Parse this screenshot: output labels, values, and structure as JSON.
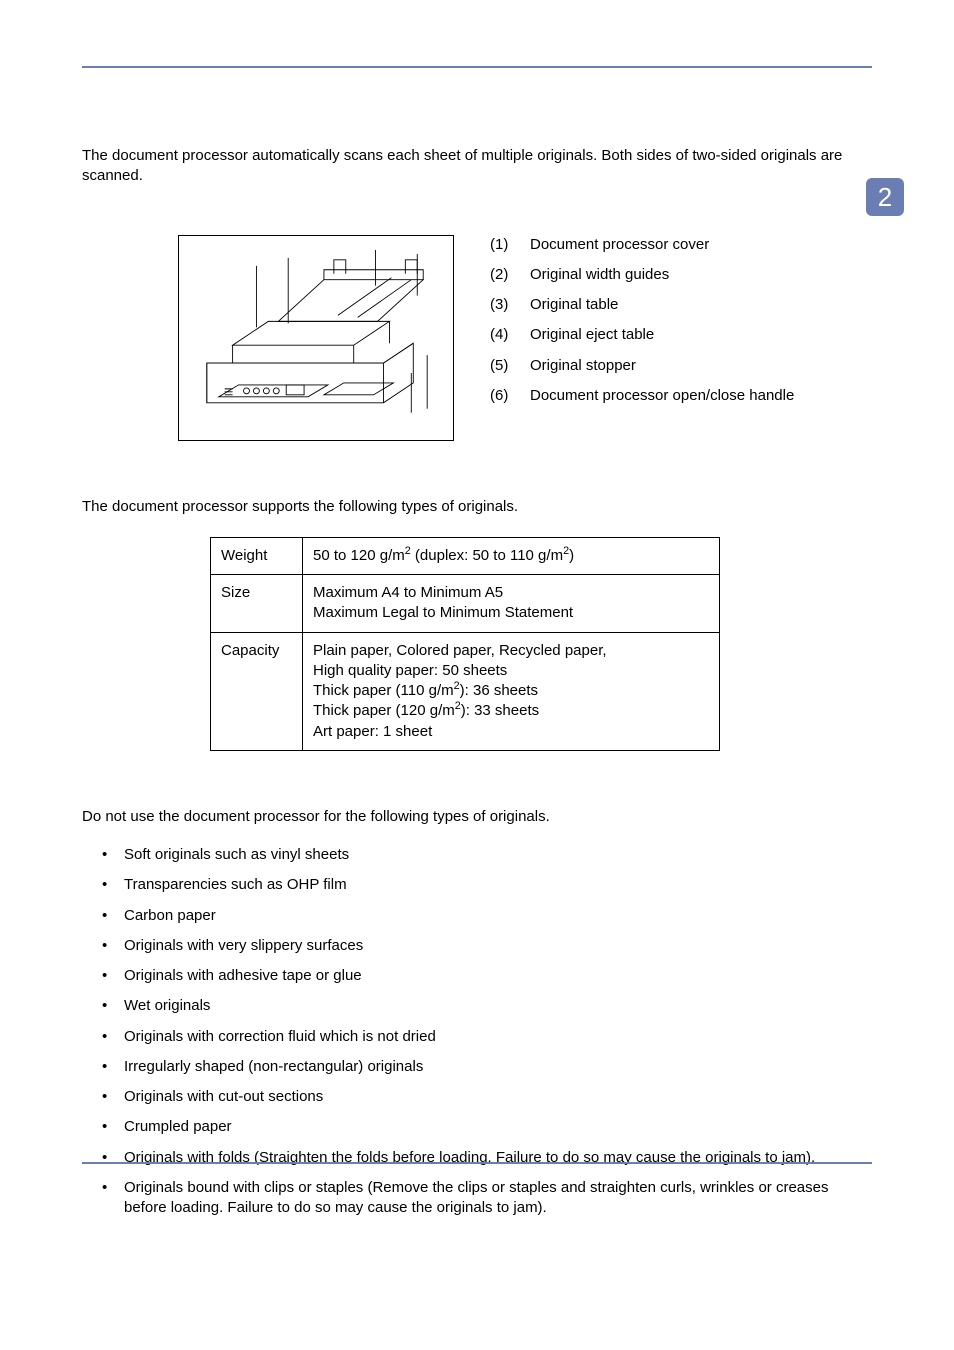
{
  "tab_number": "2",
  "colors": {
    "accent": "#6b7eb3",
    "text": "#000000",
    "bg": "#ffffff"
  },
  "intro": "The document processor automatically scans each sheet of multiple originals. Both sides of two-sided originals are scanned.",
  "parts": [
    {
      "num": "(1)",
      "label": "Document processor cover"
    },
    {
      "num": "(2)",
      "label": "Original width guides"
    },
    {
      "num": "(3)",
      "label": "Original table"
    },
    {
      "num": "(4)",
      "label": "Original eject table"
    },
    {
      "num": "(5)",
      "label": "Original stopper"
    },
    {
      "num": "(6)",
      "label": "Document processor open/close handle"
    }
  ],
  "spec_intro": "The document processor supports the following types of originals.",
  "spec_table": {
    "columns": [
      "label",
      "value"
    ],
    "rows": [
      {
        "label": "Weight",
        "value_html": "50 to 120 g/m<sup>2</sup> (duplex: 50 to 110 g/m<sup>2</sup>)"
      },
      {
        "label": "Size",
        "value_html": "Maximum A4 to Minimum A5<br>Maximum Legal to Minimum Statement"
      },
      {
        "label": "Capacity",
        "value_html": "Plain paper, Colored paper, Recycled paper,<br>High quality paper: 50 sheets<br>Thick paper (110 g/m<sup>2</sup>): 36 sheets<br>Thick paper (120 g/m<sup>2</sup>): 33 sheets<br>Art paper: 1 sheet"
      }
    ]
  },
  "unsupported_intro": "Do not use the document processor for the following types of originals.",
  "unsupported_list": [
    "Soft originals such as vinyl sheets",
    "Transparencies such as OHP film",
    "Carbon paper",
    "Originals with very slippery surfaces",
    "Originals with adhesive tape or glue",
    "Wet originals",
    "Originals with correction fluid which is not dried",
    "Irregularly shaped (non-rectangular) originals",
    "Originals with cut-out sections",
    "Crumpled paper",
    "Originals with folds (Straighten the folds before loading. Failure to do so may cause the originals to jam).",
    "Originals bound with clips or staples (Remove the clips or staples and straighten curls, wrinkles or creases before loading. Failure to do so may cause the originals to jam)."
  ]
}
